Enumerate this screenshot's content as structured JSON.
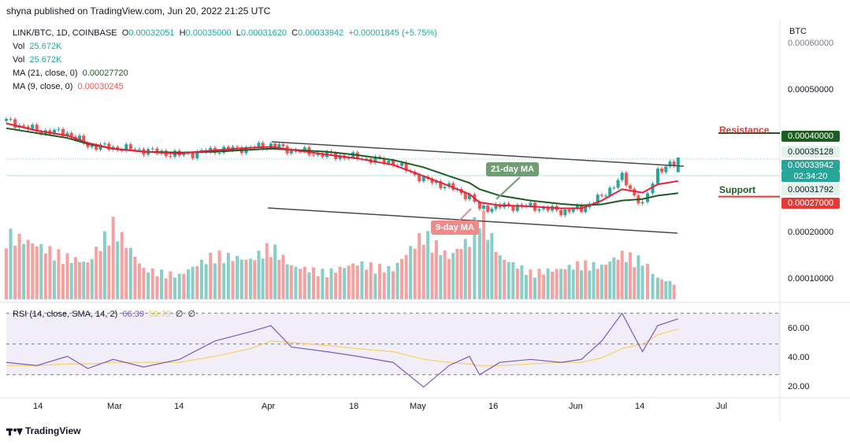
{
  "header": {
    "publish_line": "shyna published on TradingView.com, Jun 20, 2022 21:25 UTC"
  },
  "legend": {
    "symbol": "LINK/BTC, 1D, COINBASE",
    "open_label": "O",
    "open": "0.00032051",
    "high_label": "H",
    "high": "0.00035000",
    "low_label": "L",
    "low": "0.00031620",
    "close_label": "C",
    "close": "0.00033942",
    "change": "+0.00001845 (+5.75%)",
    "vol1_label": "Vol",
    "vol1": "25.672K",
    "vol2_label": "Vol",
    "vol2": "25.672K",
    "ma21_label": "MA (21, close, 0)",
    "ma21": "0.00027720",
    "ma9_label": "MA (9, close, 0)",
    "ma9": "0.00030245",
    "rsi_label": "RSI (14, close, SMA, 14, 2)",
    "rsi": "66.39",
    "rsi_sma": "59.75",
    "rsi_extra1": "∅",
    "rsi_extra2": "∅"
  },
  "price_axis": {
    "currency": "BTC",
    "ticks": [
      "0.00060000",
      "0.00050000",
      "0.00020000",
      "0.00010000"
    ],
    "boxes": {
      "resistance": "0.00040000",
      "high_line": "0.00035128",
      "last": "0.00033942",
      "countdown": "02:34:20",
      "low_line": "0.00031792",
      "support": "0.00027000"
    }
  },
  "annotations": {
    "resistance": "Resistance",
    "support": "Support",
    "ma21_tag": "21-day MA",
    "ma9_tag": "9-day MA"
  },
  "time_axis": {
    "labels": [
      "14",
      "Mar",
      "14",
      "Apr",
      "18",
      "May",
      "16",
      "Jun",
      "14",
      "Jul"
    ]
  },
  "rsi_axis": {
    "ticks": [
      "60.00",
      "40.00",
      "20.00"
    ]
  },
  "footer": {
    "brand": "TradingView"
  },
  "colors": {
    "up": "#26a69a",
    "down": "#ef5350",
    "ma21": "#1b5e20",
    "ma9": "#e91e3a",
    "rsi": "#7e57c2",
    "rsi_sma": "#f4d35e",
    "resistance": "#1b5e20",
    "support": "#e53935"
  },
  "chart_data": [
    {
      "type": "candlestick",
      "title": "LINK/BTC, 1D, COINBASE",
      "x_range": [
        "2022-02-08",
        "2022-07-10"
      ],
      "ylim": [
        0.0001,
        0.0006
      ],
      "resistance_level": 0.0004,
      "support_level": 0.00027,
      "x": [
        "2022-02-08",
        "2022-02-14",
        "2022-02-20",
        "2022-02-24",
        "2022-03-01",
        "2022-03-07",
        "2022-03-14",
        "2022-03-21",
        "2022-03-28",
        "2022-04-01",
        "2022-04-05",
        "2022-04-12",
        "2022-04-18",
        "2022-04-25",
        "2022-05-01",
        "2022-05-06",
        "2022-05-10",
        "2022-05-12",
        "2022-05-16",
        "2022-05-22",
        "2022-05-28",
        "2022-06-01",
        "2022-06-05",
        "2022-06-09",
        "2022-06-13",
        "2022-06-16",
        "2022-06-20"
      ],
      "close": [
        0.000425,
        0.000405,
        0.0004,
        0.000375,
        0.00037,
        0.000365,
        0.000355,
        0.000365,
        0.00037,
        0.000375,
        0.000365,
        0.000355,
        0.00035,
        0.00034,
        0.000305,
        0.00029,
        0.00027,
        0.000245,
        0.00025,
        0.00025,
        0.00024,
        0.000245,
        0.00027,
        0.00031,
        0.00025,
        0.000325,
        0.000339
      ]
    },
    {
      "type": "line",
      "series": [
        {
          "name": "MA (21, close, 0)",
          "values": [
            0.00041,
            0.0004,
            0.00039,
            0.000378,
            0.000368,
            0.000362,
            0.00036,
            0.000362,
            0.000366,
            0.000368,
            0.000366,
            0.000362,
            0.000355,
            0.000345,
            0.00033,
            0.000312,
            0.000298,
            0.000285,
            0.000272,
            0.000262,
            0.000255,
            0.000252,
            0.000254,
            0.000262,
            0.000265,
            0.000272,
            0.000277
          ]
        },
        {
          "name": "MA (9, close, 0)",
          "values": [
            0.00042,
            0.000405,
            0.000395,
            0.00038,
            0.000368,
            0.000362,
            0.000358,
            0.000365,
            0.00037,
            0.000372,
            0.000366,
            0.000356,
            0.000348,
            0.000335,
            0.000312,
            0.000292,
            0.000275,
            0.000258,
            0.000252,
            0.00025,
            0.000246,
            0.000246,
            0.000262,
            0.000285,
            0.000278,
            0.000295,
            0.000302
          ]
        }
      ]
    },
    {
      "type": "bar",
      "name": "Vol",
      "values": [
        22,
        18,
        14,
        12,
        25,
        10,
        8,
        15,
        13,
        18,
        11,
        9,
        12,
        10,
        22,
        14,
        20,
        30,
        14,
        9,
        10,
        12,
        11,
        15,
        13,
        7,
        5
      ]
    },
    {
      "type": "line",
      "name": "RSI (14, close, SMA, 14, 2)",
      "ylim": [
        15,
        75
      ],
      "bands": [
        30,
        50,
        70
      ],
      "series": [
        {
          "name": "RSI",
          "values": [
            38,
            36,
            42,
            34,
            40,
            35,
            40,
            52,
            58,
            62,
            48,
            45,
            42,
            38,
            22,
            36,
            42,
            30,
            38,
            40,
            38,
            40,
            52,
            70,
            45,
            62,
            66.39
          ]
        },
        {
          "name": "SMA",
          "values": [
            36,
            36,
            37,
            37,
            38,
            38,
            38,
            42,
            47,
            52,
            51,
            49,
            47,
            45,
            40,
            38,
            37,
            36,
            36,
            37,
            38,
            38,
            41,
            47,
            50,
            56,
            59.75
          ]
        }
      ]
    }
  ]
}
